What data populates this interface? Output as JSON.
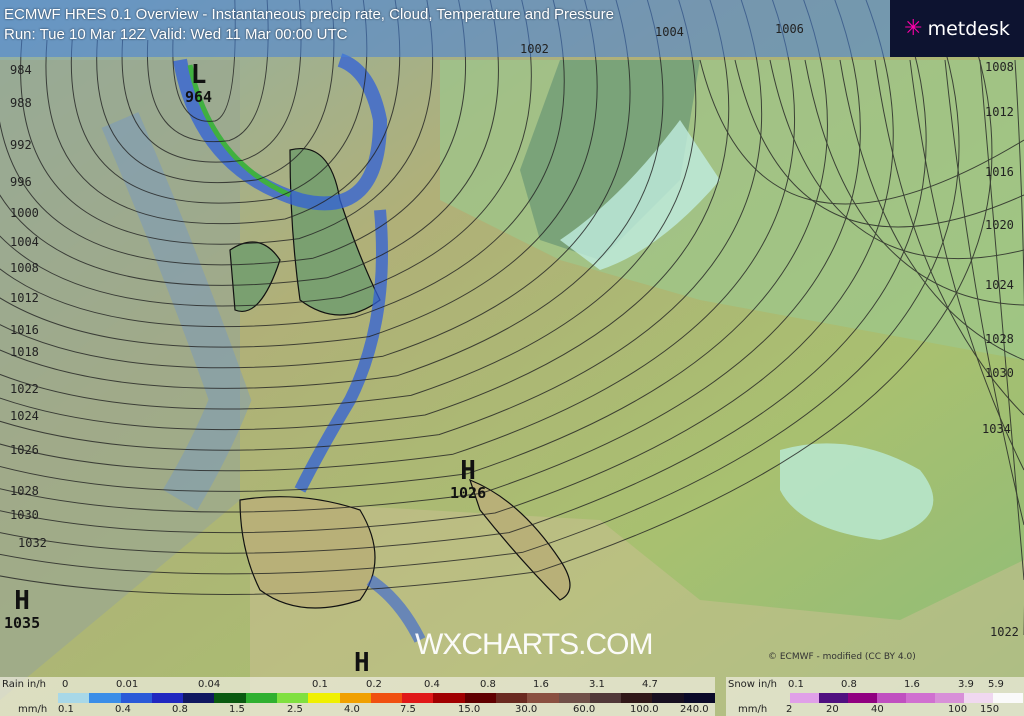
{
  "header": {
    "line1": "ECMWF HRES 0.1 Overview - Instantaneous precip rate, Cloud, Temperature and Pressure",
    "line2": "Run: Tue 10 Mar 12Z Valid: Wed 11 Mar 00:00 UTC"
  },
  "logo": {
    "text": "metdesk",
    "icon": "star-burst-icon"
  },
  "watermark": "WXCHARTS.COM",
  "copyright": "© ECMWF - modified (CC BY 4.0)",
  "isobar_labels_left": [
    "984",
    "988",
    "992",
    "996",
    "1000",
    "1004",
    "1008",
    "1012",
    "1016",
    "1018",
    "1022",
    "1024",
    "1026",
    "1028",
    "1030",
    "1032"
  ],
  "isobar_labels_right": [
    "1008",
    "1012",
    "1016",
    "1020",
    "1024",
    "1028",
    "1030",
    "1034",
    "1022"
  ],
  "isobar_labels_top": [
    "1002",
    "1004",
    "1006"
  ],
  "pressure_centers": [
    {
      "type": "L",
      "value": "964"
    },
    {
      "type": "H",
      "value": "1026"
    },
    {
      "type": "H",
      "value": "1035"
    },
    {
      "type": "H",
      "value": ""
    }
  ],
  "rain_legend": {
    "label_in": "Rain in/h",
    "label_mm": "mm/h",
    "in_ticks": [
      "0",
      "0.01",
      "0.04",
      "0.1",
      "0.2",
      "0.4",
      "0.8",
      "1.6",
      "3.1",
      "4.7"
    ],
    "mm_ticks": [
      "0.1",
      "0.4",
      "0.8",
      "1.5",
      "2.5",
      "4.0",
      "7.5",
      "15.0",
      "30.0",
      "60.0",
      "100.0",
      "240.0"
    ],
    "colors": [
      "#a8d8e8",
      "#3a8ee8",
      "#2a5ad8",
      "#2028c0",
      "#101860",
      "#0a5a10",
      "#30b030",
      "#80e040",
      "#f0f000",
      "#f0a000",
      "#f05010",
      "#e01818",
      "#a00000",
      "#600000",
      "#6a2a20",
      "#8a5040",
      "#705048",
      "#503838",
      "#301818",
      "#181020",
      "#0a0a28"
    ]
  },
  "snow_legend": {
    "label_in": "Snow in/h",
    "label_mm": "mm/h",
    "in_ticks": [
      "0.1",
      "0.8",
      "1.6",
      "3.9",
      "5.9"
    ],
    "mm_ticks": [
      "2",
      "20",
      "40",
      "100",
      "150"
    ],
    "colors": [
      "#e0a0e8",
      "#501080",
      "#900080",
      "#c050c0",
      "#d070d0",
      "#d890d8",
      "#f0d8f0",
      "#fafafa"
    ]
  }
}
